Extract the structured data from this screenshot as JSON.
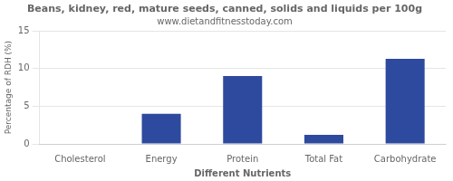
{
  "chart_data": {
    "type": "bar",
    "title": "Beans, kidney, red, mature seeds, canned, solids and liquids per 100g",
    "subtitle": "www.dietandfitnesstoday.com",
    "xlabel": "Different Nutrients",
    "ylabel": "Percentage of RDH (%)",
    "categories": [
      "Cholesterol",
      "Energy",
      "Protein",
      "Total Fat",
      "Carbohydrate"
    ],
    "values": [
      0,
      4.0,
      9.0,
      1.2,
      11.3
    ],
    "color": "#2e4a9e",
    "ylim": [
      0,
      15
    ],
    "yticks": [
      0,
      5,
      10,
      15
    ],
    "grid": true
  }
}
